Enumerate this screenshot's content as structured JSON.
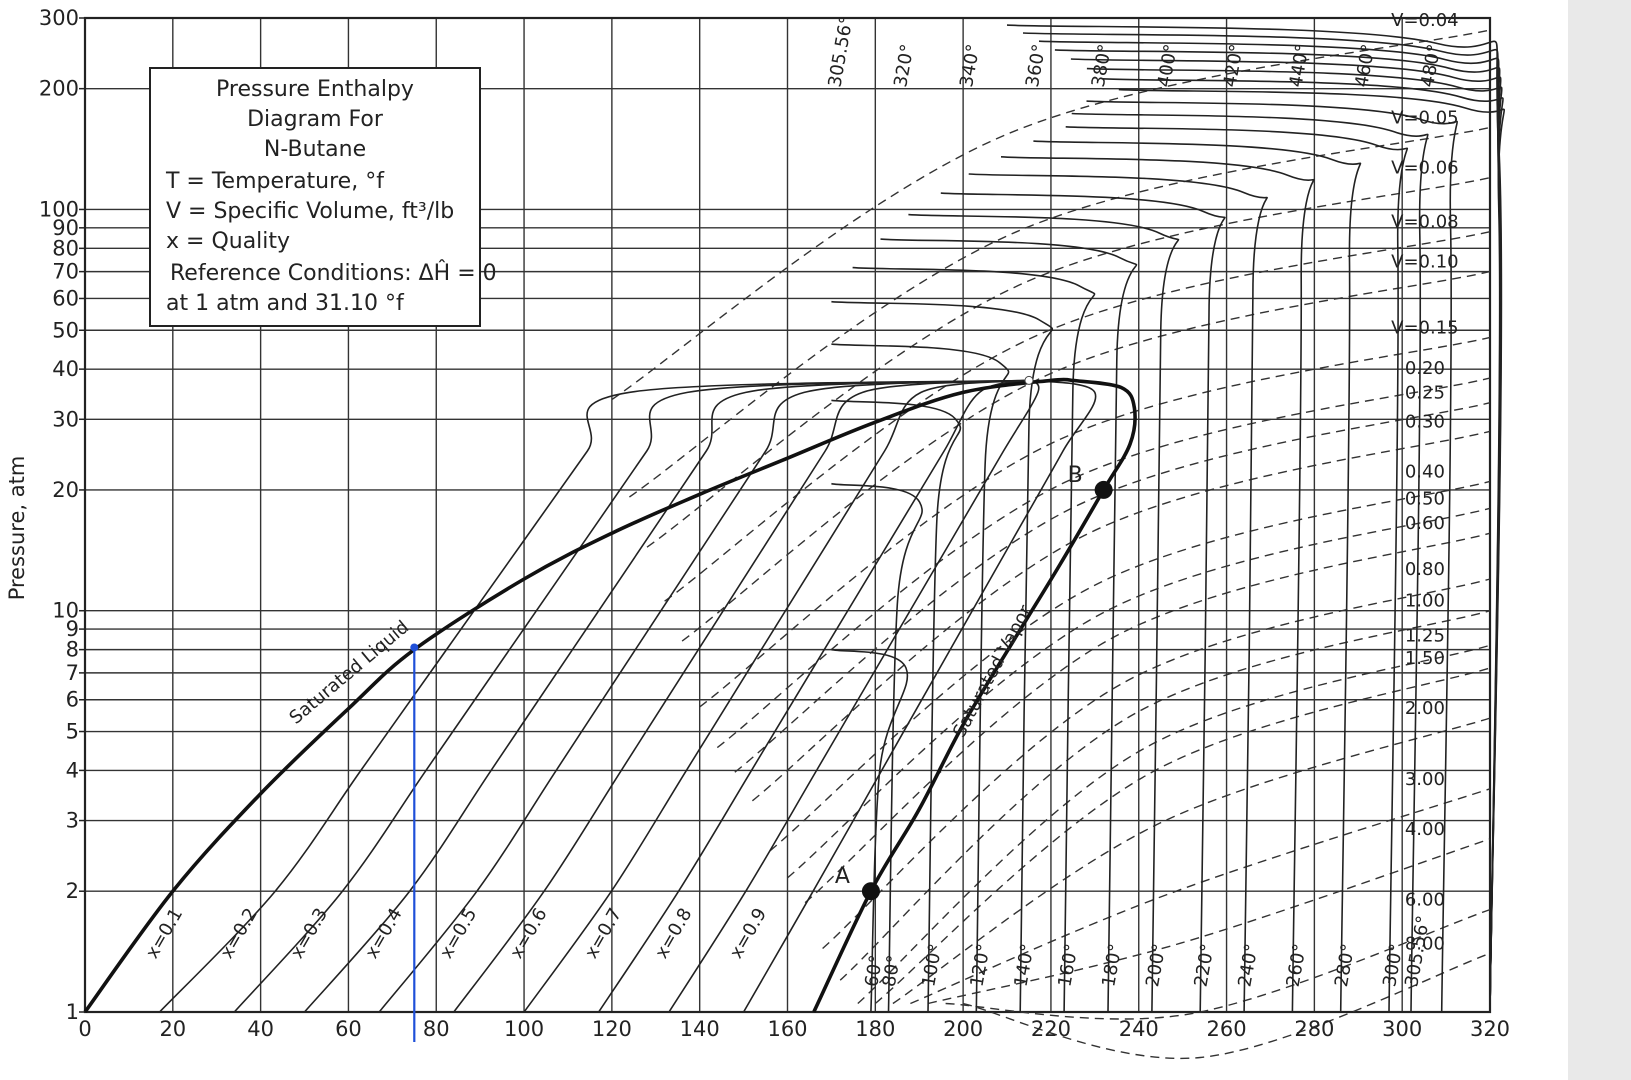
{
  "chart_data": {
    "type": "line",
    "xlim": [
      0,
      320
    ],
    "ylim": [
      1,
      300
    ],
    "y_scale": "log",
    "grid": true,
    "x_ticks": [
      "0",
      "20",
      "40",
      "60",
      "80",
      "100",
      "120",
      "140",
      "160",
      "180",
      "200",
      "220",
      "240",
      "260",
      "280",
      "300",
      "320"
    ],
    "y_ticks": [
      "1",
      "2",
      "3",
      "4",
      "5",
      "6",
      "7",
      "8",
      "9",
      "10",
      "20",
      "30",
      "40",
      "50",
      "60",
      "70",
      "80",
      "90",
      "100",
      "200",
      "300"
    ],
    "ylabel": "Pressure, atm",
    "xlabel": "",
    "title_box": {
      "lines": [
        "Pressure Enthalpy",
        "Diagram For",
        "N-Butane"
      ],
      "legend": [
        "T = Temperature, °f",
        "V = Specific Volume, ft³/lb",
        "x = Quality",
        "Reference Conditions: ΔĤ = 0",
        "at 1 atm and 31.10 °f"
      ]
    },
    "saturation_dome": {
      "saturated_liquid_label": "Saturated Liquid",
      "saturated_vapor_label": "Saturated Vapor",
      "saturated_liquid": [
        [
          0,
          1
        ],
        [
          20,
          2
        ],
        [
          40,
          3.5
        ],
        [
          60,
          5.7
        ],
        [
          75,
          8
        ],
        [
          100,
          12
        ],
        [
          120,
          15.6
        ],
        [
          140,
          19.5
        ],
        [
          160,
          24
        ],
        [
          180,
          29.5
        ],
        [
          200,
          35
        ],
        [
          220,
          37.5
        ],
        [
          225,
          37.5
        ]
      ],
      "saturated_vapor": [
        [
          166,
          1
        ],
        [
          179,
          2
        ],
        [
          190,
          3.2
        ],
        [
          200,
          5.2
        ],
        [
          212,
          8.6
        ],
        [
          222,
          13
        ],
        [
          232,
          20
        ],
        [
          238,
          26
        ],
        [
          239,
          32
        ],
        [
          236,
          36
        ],
        [
          225,
          37.5
        ]
      ],
      "critical_point": [
        215,
        37.5
      ]
    },
    "quality_lines": {
      "labels": [
        "x=0.1",
        "x=0.2",
        "x=0.3",
        "x=0.4",
        "x=0.5",
        "x=0.6",
        "x=0.7",
        "x=0.8",
        "x=0.9"
      ],
      "x_at_1atm": [
        17,
        34,
        50,
        67,
        84,
        100,
        117,
        133,
        150
      ]
    },
    "isotherms": {
      "labels": [
        "60°",
        "80°",
        "100°",
        "120°",
        "140°",
        "160°",
        "180°",
        "200°",
        "220°",
        "240°",
        "260°",
        "280°",
        "300°",
        "305.56°",
        "320°",
        "340°",
        "360°",
        "380°",
        "400°",
        "420°",
        "440°",
        "460°",
        "480°"
      ],
      "x_at_1atm": [
        179,
        183,
        192,
        203,
        213,
        223,
        233,
        243,
        254,
        264,
        275,
        286,
        297,
        302,
        309,
        320,
        320,
        320,
        320,
        320,
        320,
        320,
        320
      ]
    },
    "specific_volume_lines": {
      "labels": [
        "V=0.04",
        "V=0.05",
        "V=0.06",
        "V=0.08",
        "V=0.10",
        "V=0.15",
        "0.20",
        "0.25",
        "0.30",
        "0.40",
        "0.50",
        "0.60",
        "0.80",
        "1.00",
        "1.25",
        "1.50",
        "2.00",
        "3.00",
        "4.00",
        "6.00",
        "8.00"
      ],
      "pressure_at_x320": [
        280,
        160,
        120,
        88,
        70,
        48,
        38,
        33,
        28,
        21,
        18,
        15.6,
        12,
        10,
        8.2,
        7.2,
        5.4,
        3.6,
        2.7,
        1.8,
        1.4
      ]
    },
    "points": [
      {
        "label": "A",
        "x": 179,
        "y": 2
      },
      {
        "label": "B",
        "x": 232,
        "y": 20
      }
    ],
    "highlight": {
      "x": 75,
      "from_y": 1,
      "to_y": 8.1,
      "color": "#1f4fd8"
    },
    "top_isotherm_labels": [
      "305.56°",
      "320°",
      "340°",
      "360°",
      "380°",
      "400°",
      "420°",
      "440°",
      "460°",
      "480°"
    ]
  }
}
